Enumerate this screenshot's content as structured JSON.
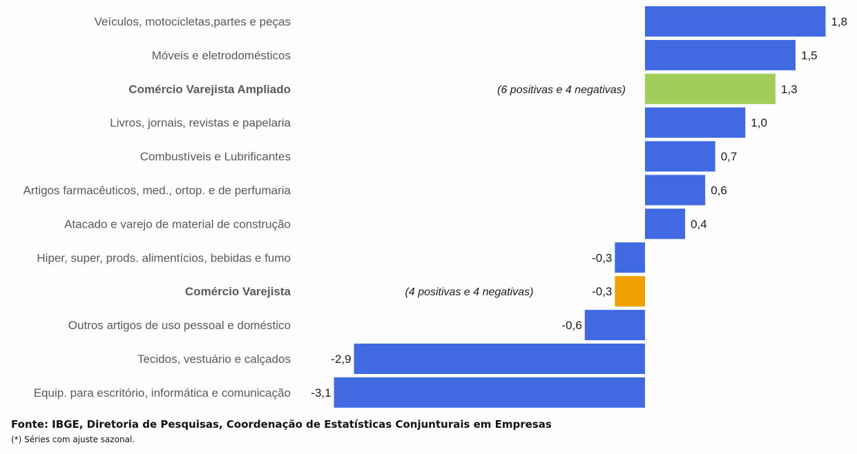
{
  "chart_data": {
    "type": "bar",
    "orientation": "horizontal",
    "title": "",
    "xlabel": "",
    "ylabel": "",
    "grid": false,
    "legend": false,
    "categories": [
      "Veículos, motocicletas,partes e peças",
      "Móveis e eletrodomésticos",
      "Comércio Varejista Ampliado",
      "Livros, jornais, revistas e papelaria",
      "Combustíveis e Lubrificantes",
      "Artigos farmacêuticos, med., ortop. e de perfumaria",
      "Atacado e varejo de material de construção",
      "Hiper, super, prods.  alimentícios, bebidas e fumo",
      "Comércio Varejista",
      "Outros artigos de uso pessoal e doméstico",
      "Tecidos, vestuário e calçados",
      "Equip. para escritório, informática e comunicação"
    ],
    "values": [
      1.8,
      1.5,
      1.3,
      1.0,
      0.7,
      0.6,
      0.4,
      -0.3,
      -0.3,
      -0.6,
      -2.9,
      -3.1
    ],
    "value_labels": [
      "1,8",
      "1,5",
      "1,3",
      "1,0",
      "0,7",
      "0,6",
      "0,4",
      "-0,3",
      "-0,3",
      "-0,6",
      "-2,9",
      "-3,1"
    ],
    "bold_categories": [
      2,
      8
    ],
    "annotations": {
      "2": "(6 positivas e 4 negativas)",
      "8": "(4 positivas e 4 negativas)"
    },
    "xlim": [
      -3.1,
      1.8
    ],
    "colors": {
      "default": "#4169e1",
      "Comércio Varejista Ampliado": "#a2cd5a",
      "Comércio Varejista": "#f0a000"
    }
  },
  "footer": {
    "source": "Fonte: IBGE, Diretoria de Pesquisas, Coordenação de Estatísticas Conjunturais em Empresas",
    "note": "(*) Séries com ajuste sazonal."
  }
}
